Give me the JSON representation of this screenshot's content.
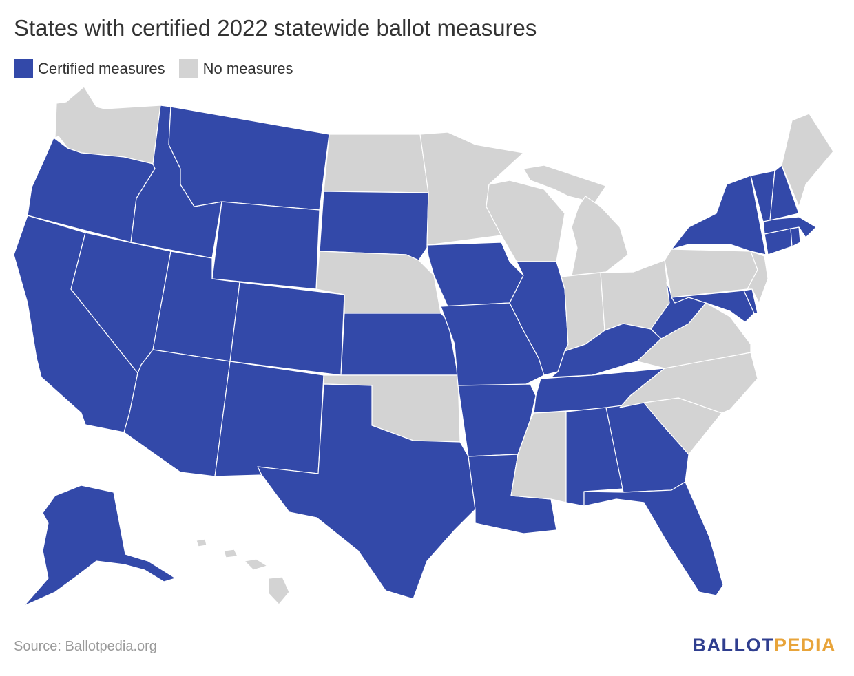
{
  "title": "States with certified 2022 statewide ballot measures",
  "legend": [
    {
      "label": "Certified measures",
      "color": "#3349a9"
    },
    {
      "label": "No measures",
      "color": "#d3d3d3"
    }
  ],
  "colors": {
    "certified": "#3349a9",
    "none": "#d3d3d3",
    "border": "#ffffff"
  },
  "states": {
    "WA": "none",
    "OR": "certified",
    "CA": "certified",
    "ID": "certified",
    "NV": "certified",
    "MT": "certified",
    "WY": "certified",
    "UT": "certified",
    "AZ": "certified",
    "CO": "certified",
    "NM": "certified",
    "ND": "none",
    "SD": "certified",
    "NE": "none",
    "KS": "certified",
    "OK": "none",
    "TX": "certified",
    "MN": "none",
    "IA": "certified",
    "MO": "certified",
    "AR": "certified",
    "LA": "certified",
    "WI": "none",
    "MI": "none",
    "IL": "certified",
    "IN": "none",
    "OH": "none",
    "KY": "certified",
    "TN": "certified",
    "MS": "none",
    "AL": "certified",
    "GA": "certified",
    "FL": "certified",
    "SC": "none",
    "NC": "none",
    "VA": "none",
    "WV": "certified",
    "MD": "certified",
    "DE": "certified",
    "PA": "none",
    "NJ": "none",
    "NY": "certified",
    "CT": "certified",
    "RI": "certified",
    "MA": "certified",
    "VT": "certified",
    "NH": "certified",
    "ME": "none",
    "AK": "certified",
    "HI": "none"
  },
  "footer": {
    "source": "Source: Ballotpedia.org",
    "logo_part1": "BALLOT",
    "logo_part2": "PEDIA",
    "logo_color1": "#2f3e8f",
    "logo_color2": "#e8a43a"
  }
}
